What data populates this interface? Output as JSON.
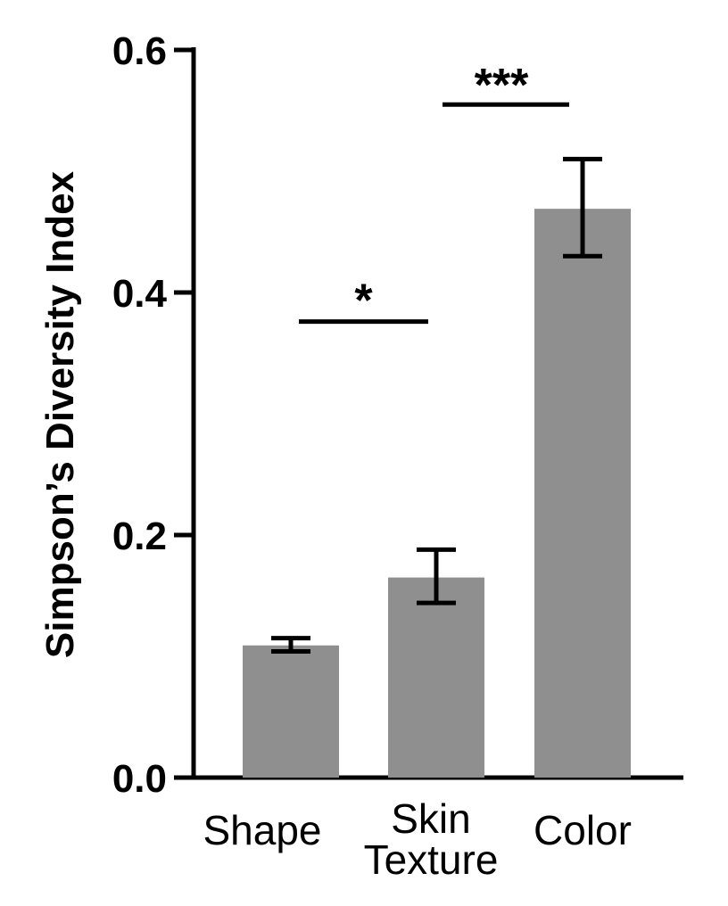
{
  "chart_data": {
    "type": "bar",
    "title": "",
    "xlabel": "",
    "ylabel": "Simpson’s Diversity Index",
    "ylim": [
      0,
      0.6
    ],
    "yticks": [
      "0.0",
      "0.2",
      "0.4",
      "0.6"
    ],
    "ytick_values": [
      0,
      0.2,
      0.4,
      0.6
    ],
    "categories": [
      {
        "lines": [
          "Shape"
        ]
      },
      {
        "lines": [
          "Skin",
          "Texture"
        ]
      },
      {
        "lines": [
          "Color"
        ]
      }
    ],
    "values": [
      0.109,
      0.165,
      0.469
    ],
    "error": [
      {
        "low": 0.104,
        "high": 0.115
      },
      {
        "low": 0.144,
        "high": 0.188
      },
      {
        "low": 0.43,
        "high": 0.51
      }
    ],
    "bar_color": "#8f8f8f",
    "grid": false,
    "significance": [
      {
        "from": 0,
        "to": 1,
        "label": "*",
        "y": 0.376
      },
      {
        "from": 1,
        "to": 2,
        "label": "***",
        "y": 0.555
      }
    ]
  }
}
